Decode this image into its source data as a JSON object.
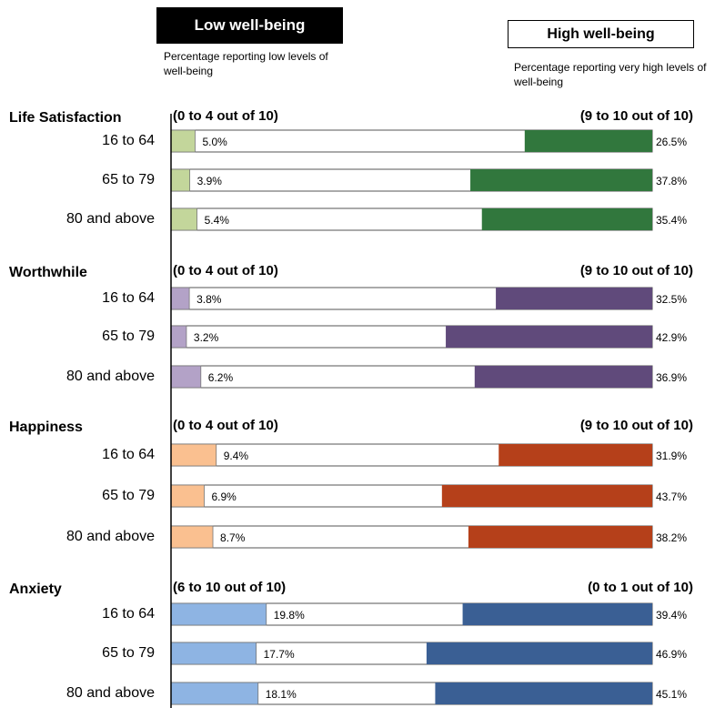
{
  "chart_data": {
    "type": "stacked-bar",
    "xlim": [
      0,
      100
    ],
    "low_legend": {
      "title": "Low well-being",
      "note": "Percentage reporting low levels of well-being"
    },
    "high_legend": {
      "title": "High well-being",
      "note": "Percentage reporting very high levels of well-being"
    },
    "groups": [
      {
        "name": "Life Satisfaction",
        "low_range": "(0 to 4 out of 10)",
        "high_range": "(9 to 10 out of 10)",
        "categories": [
          "16 to 64",
          "65 to 79",
          "80 and above"
        ],
        "series": [
          {
            "color": "#c3d69b",
            "values": [
              5.0,
              3.9,
              5.4
            ],
            "value_labels": [
              "5.0%",
              "3.9%",
              "5.4%"
            ]
          },
          {
            "color": "#31773d",
            "values": [
              26.5,
              37.8,
              35.4
            ],
            "value_labels": [
              "26.5%",
              "37.8%",
              "35.4%"
            ]
          }
        ]
      },
      {
        "name": "Worthwhile",
        "low_range": "(0 to 4 out of 10)",
        "high_range": "(9 to 10 out of 10)",
        "categories": [
          "16 to 64",
          "65 to 79",
          "80 and above"
        ],
        "series": [
          {
            "color": "#b3a2c7",
            "values": [
              3.8,
              3.2,
              6.2
            ],
            "value_labels": [
              "3.8%",
              "3.2%",
              "6.2%"
            ]
          },
          {
            "color": "#604a7b",
            "values": [
              32.5,
              42.9,
              36.9
            ],
            "value_labels": [
              "32.5%",
              "42.9%",
              "36.9%"
            ]
          }
        ]
      },
      {
        "name": "Happiness",
        "low_range": "(0 to 4 out of 10)",
        "high_range": "(9 to 10 out of 10)",
        "categories": [
          "16 to 64",
          "65 to 79",
          "80 and above"
        ],
        "series": [
          {
            "color": "#fac090",
            "values": [
              9.4,
              6.9,
              8.7
            ],
            "value_labels": [
              "9.4%",
              "6.9%",
              "8.7%"
            ]
          },
          {
            "color": "#b5401a",
            "values": [
              31.9,
              43.7,
              38.2
            ],
            "value_labels": [
              "31.9%",
              "43.7%",
              "38.2%"
            ]
          }
        ]
      },
      {
        "name": "Anxiety",
        "low_range": "(6 to 10 out of 10)",
        "high_range": "(0 to 1 out of 10)",
        "categories": [
          "16 to 64",
          "65 to 79",
          "80 and above"
        ],
        "series": [
          {
            "color": "#8eb4e3",
            "values": [
              19.8,
              17.7,
              18.1
            ],
            "value_labels": [
              "19.8%",
              "17.7%",
              "18.1%"
            ]
          },
          {
            "color": "#3a5f94",
            "values": [
              39.4,
              46.9,
              45.1
            ],
            "value_labels": [
              "39.4%",
              "46.9%",
              "45.1%"
            ]
          }
        ]
      }
    ]
  }
}
